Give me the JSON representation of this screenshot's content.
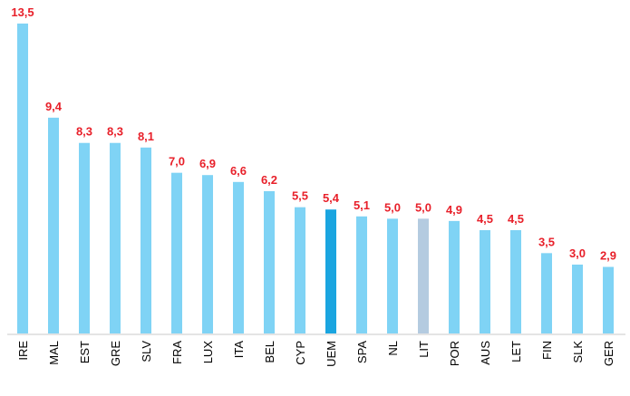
{
  "chart_data": {
    "type": "bar",
    "title": "",
    "xlabel": "",
    "ylabel": "",
    "ylim": [
      0,
      13.5
    ],
    "grid": false,
    "legend": "none",
    "categories": [
      "IRE",
      "MAL",
      "EST",
      "GRE",
      "SLV",
      "FRA",
      "LUX",
      "ITA",
      "BEL",
      "CYP",
      "UEM",
      "SPA",
      "NL",
      "LIT",
      "POR",
      "AUS",
      "LET",
      "FIN",
      "SLK",
      "GER"
    ],
    "values": [
      13.5,
      9.4,
      8.3,
      8.3,
      8.1,
      7.0,
      6.9,
      6.6,
      6.2,
      5.5,
      5.4,
      5.1,
      5.0,
      5.0,
      4.9,
      4.5,
      4.5,
      3.5,
      3.0,
      2.9
    ],
    "value_labels": [
      "13,5",
      "9,4",
      "8,3",
      "8,3",
      "8,1",
      "7,0",
      "6,9",
      "6,6",
      "6,2",
      "5,5",
      "5,4",
      "5,1",
      "5,0",
      "5,0",
      "4,9",
      "4,5",
      "4,5",
      "3,5",
      "3,0",
      "2,9"
    ],
    "colors": {
      "default": "#7fd3f5",
      "highlight": "#1aa5e0",
      "muted": "#b4cbe0",
      "label": "#e8202a",
      "axis": "#c8c8c8"
    },
    "highlight": {
      "UEM": "highlight",
      "LIT": "muted"
    }
  }
}
